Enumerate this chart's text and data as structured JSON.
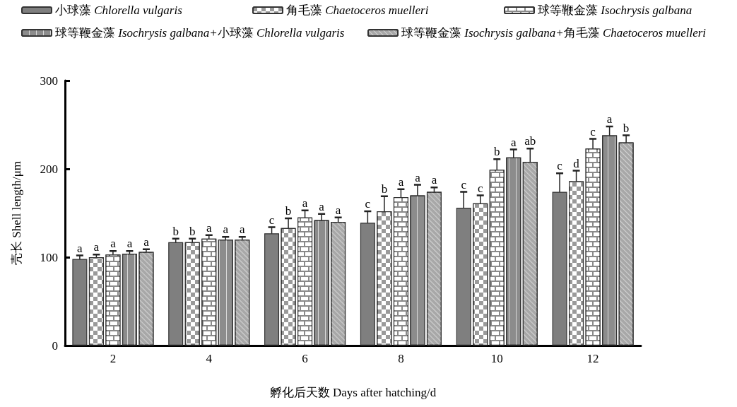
{
  "chart_data": {
    "type": "bar",
    "xlabel": "孵化后天数 Days after hatching/d",
    "ylabel": "壳长 Shell length/μm",
    "categories": [
      "2",
      "4",
      "6",
      "8",
      "10",
      "12"
    ],
    "ylim": [
      0,
      300
    ],
    "yticks": [
      0,
      100,
      200,
      300
    ],
    "legend": "top",
    "series": [
      {
        "name": "小球藻 Chlorella vulgaris",
        "color": "#7f7f7f",
        "values": [
          98,
          117,
          127,
          139,
          156,
          174
        ],
        "errors": [
          4,
          4,
          7,
          13,
          18,
          21
        ],
        "value_labels": [
          "a",
          "b",
          "c",
          "c",
          "c",
          "c"
        ]
      },
      {
        "name": "角毛藻 Chaetoceros muelleri",
        "color": "#9a9a9a",
        "values": [
          100,
          117,
          133,
          152,
          161,
          186
        ],
        "errors": [
          3,
          4,
          11,
          17,
          9,
          12
        ],
        "value_labels": [
          "a",
          "b",
          "b",
          "b",
          "c",
          "d"
        ]
      },
      {
        "name": "球等鞭金藻 Isochrysis galbana",
        "color": "#8a8a8a",
        "values": [
          103,
          121,
          145,
          168,
          199,
          223
        ],
        "errors": [
          4,
          4,
          8,
          9,
          12,
          11
        ],
        "value_labels": [
          "a",
          "a",
          "a",
          "a",
          "b",
          "c"
        ]
      },
      {
        "name": "球等鞭金藻 Isochrysis galbana+小球藻 Chlorella vulgaris",
        "color": "#8c8c8c",
        "values": [
          104,
          120,
          142,
          170,
          213,
          238
        ],
        "errors": [
          3,
          3,
          7,
          12,
          9,
          10
        ],
        "value_labels": [
          "a",
          "a",
          "a",
          "a",
          "a",
          "a"
        ]
      },
      {
        "name": "球等鞭金藻 Isochrysis galbana+角毛藻 Chaetoceros muelleri",
        "color": "#a8a8a8",
        "values": [
          106,
          120,
          140,
          174,
          208,
          230
        ],
        "errors": [
          3,
          3,
          5,
          5,
          15,
          8
        ],
        "value_labels": [
          "a",
          "a",
          "a",
          "a",
          "ab",
          "b"
        ]
      }
    ]
  }
}
